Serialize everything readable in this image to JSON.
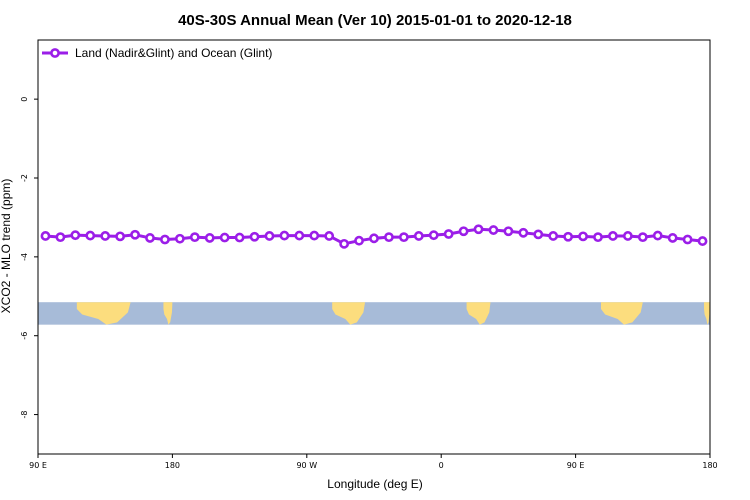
{
  "colors": {
    "series": "#9b1ee8",
    "ocean": "#a7bbd8",
    "land": "#fcdd7e",
    "frame": "#000000",
    "background": "#ffffff"
  },
  "chart_data": {
    "type": "line",
    "title": "40S-30S Annual Mean (Ver 10)   2015-01-01 to 2020-12-18",
    "xlabel": "Longitude (deg E)",
    "ylabel": "XCO2 - MLO trend (ppm)",
    "xlim": [
      90,
      540
    ],
    "ylim": [
      -9.0,
      1.5
    ],
    "x_ticks": [
      {
        "value": 90,
        "label": "90 E"
      },
      {
        "value": 180,
        "label": "180"
      },
      {
        "value": 270,
        "label": "90 W"
      },
      {
        "value": 360,
        "label": "0"
      },
      {
        "value": 450,
        "label": "90 E"
      },
      {
        "value": 540,
        "label": "180"
      }
    ],
    "y_ticks": [
      {
        "value": 0,
        "label": "0"
      },
      {
        "value": -2,
        "label": "-2"
      },
      {
        "value": -4,
        "label": "-4"
      },
      {
        "value": -6,
        "label": "-6"
      },
      {
        "value": -8,
        "label": "-8"
      }
    ],
    "grid": false,
    "legend_position": "top-left",
    "map_strip": {
      "y_top": -5.15,
      "y_bottom": -5.72,
      "land_segments": [
        {
          "lon_start": 116,
          "lon_end": 152
        },
        {
          "lon_start": 174,
          "lon_end": 180
        },
        {
          "lon_start": 287,
          "lon_end": 309
        },
        {
          "lon_start": 377,
          "lon_end": 393
        },
        {
          "lon_start": 467,
          "lon_end": 495
        },
        {
          "lon_start": 536,
          "lon_end": 540
        }
      ]
    },
    "series": [
      {
        "name": "Land (Nadir&Glint) and Ocean (Glint)",
        "x": [
          95,
          105,
          115,
          125,
          135,
          145,
          155,
          165,
          175,
          185,
          195,
          205,
          215,
          225,
          235,
          245,
          255,
          265,
          275,
          285,
          295,
          305,
          315,
          325,
          335,
          345,
          355,
          365,
          375,
          385,
          395,
          405,
          415,
          425,
          435,
          445,
          455,
          465,
          475,
          485,
          495,
          505,
          515,
          525,
          535
        ],
        "values": [
          -3.47,
          -3.5,
          -3.45,
          -3.46,
          -3.47,
          -3.48,
          -3.44,
          -3.52,
          -3.56,
          -3.54,
          -3.5,
          -3.52,
          -3.51,
          -3.51,
          -3.49,
          -3.47,
          -3.46,
          -3.46,
          -3.46,
          -3.47,
          -3.67,
          -3.59,
          -3.53,
          -3.5,
          -3.5,
          -3.47,
          -3.45,
          -3.42,
          -3.35,
          -3.3,
          -3.32,
          -3.35,
          -3.39,
          -3.43,
          -3.47,
          -3.49,
          -3.48,
          -3.5,
          -3.47,
          -3.47,
          -3.5,
          -3.46,
          -3.52,
          -3.56,
          -3.6
        ]
      }
    ]
  }
}
